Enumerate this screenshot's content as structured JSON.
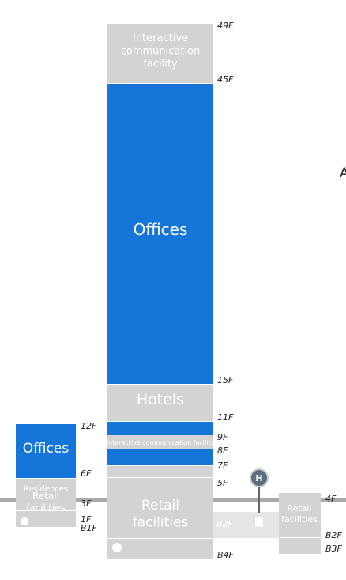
{
  "tower": {
    "top": "Interactive communication facility",
    "offices": "Offices",
    "hotels": "Hotels",
    "strip": "Interactive communication facility",
    "retail": "Retail facilities",
    "floors": [
      "49F",
      "45F",
      "15F",
      "11F",
      "9F",
      "8F",
      "7F",
      "5F",
      "B4F"
    ]
  },
  "left": {
    "offices": "Offices",
    "residences": "Residences",
    "retail": "Retail facilities",
    "floors": [
      "12F",
      "6F",
      "3F",
      "1F",
      "B1F"
    ]
  },
  "station": {
    "icon": "H",
    "floor": "B2F"
  },
  "right": {
    "retail": "Retail facilities",
    "floors": [
      "4F",
      "B2F",
      "B3F"
    ]
  },
  "edge": "A"
}
